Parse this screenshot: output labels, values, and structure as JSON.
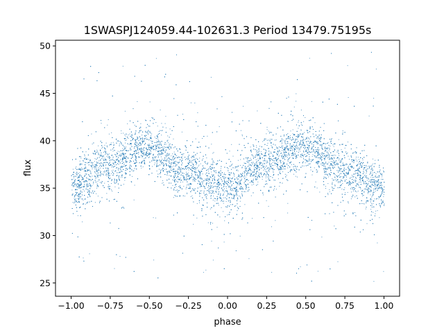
{
  "chart_data": {
    "type": "scatter",
    "title": "1SWASPJ124059.44-102631.3 Period 13479.75195s",
    "xlabel": "phase",
    "ylabel": "flux",
    "xlim": [
      -1.1,
      1.1
    ],
    "ylim": [
      23.6,
      50.6
    ],
    "x_ticks": [
      -1.0,
      -0.75,
      -0.5,
      -0.25,
      0.0,
      0.25,
      0.5,
      0.75,
      1.0
    ],
    "x_tick_labels": [
      "−1.00",
      "−0.75",
      "−0.50",
      "−0.25",
      "0.00",
      "0.25",
      "0.50",
      "0.75",
      "1.00"
    ],
    "y_ticks": [
      25,
      30,
      35,
      40,
      45,
      50
    ],
    "y_tick_labels": [
      "25",
      "30",
      "35",
      "40",
      "45",
      "50"
    ],
    "grid": false,
    "legend": "none",
    "point_color": "#1f77b4",
    "series": [
      {
        "x_range": [
          -1.0,
          1.0
        ],
        "points_shown": "dense cloud of many thousands of observations",
        "trend": {
          "phase": [
            -1.0,
            -0.75,
            -0.55,
            -0.5,
            -0.25,
            0.0,
            0.25,
            0.45,
            0.5,
            0.75,
            1.0
          ],
          "flux": [
            35.3,
            37.6,
            39.3,
            39.2,
            36.6,
            35.0,
            37.8,
            39.4,
            39.2,
            36.8,
            35.0
          ]
        },
        "core_scatter_sigma": 1.3,
        "outlier_range": [
          25,
          49.5
        ]
      }
    ]
  }
}
